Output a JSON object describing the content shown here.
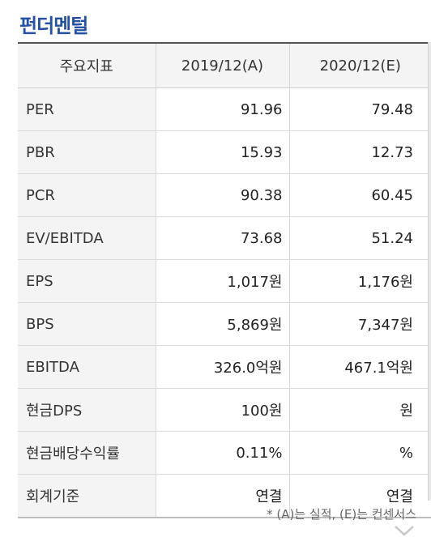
{
  "section_title": "펀더멘털",
  "table": {
    "headers": [
      "주요지표",
      "2019/12(A)",
      "2020/12(E)"
    ],
    "rows": [
      {
        "label": "PER",
        "a": "91.96",
        "e": "79.48"
      },
      {
        "label": "PBR",
        "a": "15.93",
        "e": "12.73"
      },
      {
        "label": "PCR",
        "a": "90.38",
        "e": "60.45"
      },
      {
        "label": "EV/EBITDA",
        "a": "73.68",
        "e": "51.24"
      },
      {
        "label": "EPS",
        "a": "1,017원",
        "e": "1,176원"
      },
      {
        "label": "BPS",
        "a": "5,869원",
        "e": "7,347원"
      },
      {
        "label": "EBITDA",
        "a": "326.0억원",
        "e": "467.1억원"
      },
      {
        "label": "현금DPS",
        "a": "100원",
        "e": "원"
      },
      {
        "label": "현금배당수익률",
        "a": "0.11%",
        "e": "%"
      },
      {
        "label": "회계기준",
        "a": "연결",
        "e": "연결"
      }
    ]
  },
  "footnote": "* (A)는 실적, (E)는 컨센서스",
  "icons": {
    "expand": "chevron-down-icon"
  }
}
